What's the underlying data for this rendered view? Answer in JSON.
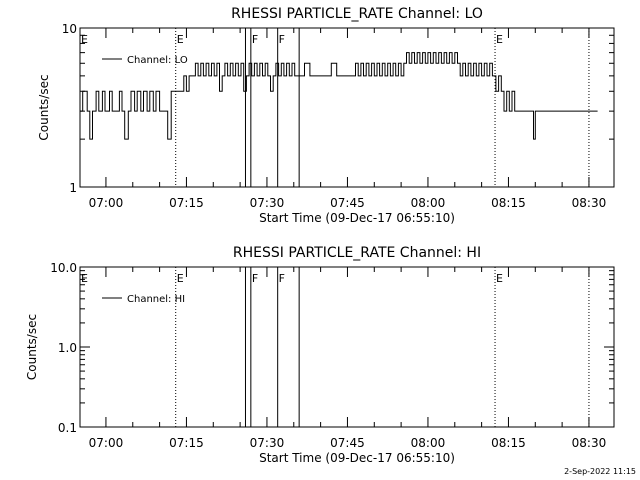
{
  "footer": {
    "date_stamp": "2-Sep-2022 11:15"
  },
  "chart_data": [
    {
      "type": "line",
      "title": "RHESSI PARTICLE_RATE Channel: LO",
      "xlabel": "Start Time (09-Dec-17 06:55:10)",
      "ylabel": "Counts/sec",
      "yscale": "log",
      "xlim": [
        "06:55:10",
        "08:34:40"
      ],
      "ylim": [
        1,
        10
      ],
      "x_ticks": [
        "07:00",
        "07:15",
        "07:30",
        "07:45",
        "08:00",
        "08:15",
        "08:30"
      ],
      "y_ticks": [
        "1",
        "10"
      ],
      "grid": false,
      "legend": "top-left",
      "legend_entries": [
        "Channel: LO"
      ],
      "event_lines": [
        {
          "time": "07:13:00",
          "label": "E",
          "style": "dotted"
        },
        {
          "time": "07:26:00",
          "label": "",
          "style": "solid"
        },
        {
          "time": "07:27:00",
          "label": "F",
          "style": "solid"
        },
        {
          "time": "07:32:00",
          "label": "F",
          "style": "solid"
        },
        {
          "time": "07:36:00",
          "label": "",
          "style": "solid"
        },
        {
          "time": "08:12:30",
          "label": "E",
          "style": "dotted"
        },
        {
          "time": "08:30:00",
          "label": "",
          "style": "dotted"
        }
      ],
      "series": [
        {
          "name": "Channel: LO",
          "points": [
            [
              "06:55:10",
              3
            ],
            [
              "06:55:40",
              4
            ],
            [
              "06:56:30",
              3
            ],
            [
              "06:57:00",
              2
            ],
            [
              "06:57:30",
              3
            ],
            [
              "06:58:10",
              4
            ],
            [
              "06:58:40",
              3
            ],
            [
              "06:59:20",
              4
            ],
            [
              "06:59:50",
              3
            ],
            [
              "07:00:40",
              4
            ],
            [
              "07:01:10",
              3
            ],
            [
              "07:02:00",
              3
            ],
            [
              "07:02:30",
              4
            ],
            [
              "07:03:00",
              3
            ],
            [
              "07:03:30",
              2
            ],
            [
              "07:04:10",
              3
            ],
            [
              "07:04:40",
              4
            ],
            [
              "07:05:20",
              3
            ],
            [
              "07:05:50",
              4
            ],
            [
              "07:06:30",
              3
            ],
            [
              "07:07:00",
              4
            ],
            [
              "07:07:40",
              3
            ],
            [
              "07:08:10",
              4
            ],
            [
              "07:08:50",
              3
            ],
            [
              "07:09:20",
              4
            ],
            [
              "07:10:00",
              3
            ],
            [
              "07:11:00",
              3
            ],
            [
              "07:11:30",
              2
            ],
            [
              "07:12:10",
              4
            ],
            [
              "07:13:00",
              4
            ],
            [
              "07:14:00",
              4
            ],
            [
              "07:14:30",
              5
            ],
            [
              "07:15:00",
              4
            ],
            [
              "07:15:30",
              5
            ],
            [
              "07:16:00",
              5
            ],
            [
              "07:16:40",
              6
            ],
            [
              "07:17:10",
              5
            ],
            [
              "07:17:40",
              6
            ],
            [
              "07:18:10",
              5
            ],
            [
              "07:18:40",
              6
            ],
            [
              "07:19:10",
              5
            ],
            [
              "07:19:40",
              6
            ],
            [
              "07:20:10",
              5
            ],
            [
              "07:20:40",
              6
            ],
            [
              "07:21:10",
              4
            ],
            [
              "07:21:40",
              5
            ],
            [
              "07:22:10",
              6
            ],
            [
              "07:22:40",
              5
            ],
            [
              "07:23:10",
              6
            ],
            [
              "07:23:40",
              5
            ],
            [
              "07:24:10",
              6
            ],
            [
              "07:24:40",
              5
            ],
            [
              "07:25:10",
              6
            ],
            [
              "07:25:40",
              4
            ],
            [
              "07:26:10",
              5
            ],
            [
              "07:26:40",
              6
            ],
            [
              "07:27:10",
              5
            ],
            [
              "07:27:40",
              6
            ],
            [
              "07:28:10",
              5
            ],
            [
              "07:28:40",
              6
            ],
            [
              "07:29:10",
              5
            ],
            [
              "07:29:40",
              6
            ],
            [
              "07:30:10",
              5
            ],
            [
              "07:30:40",
              4
            ],
            [
              "07:31:10",
              5
            ],
            [
              "07:31:40",
              6
            ],
            [
              "07:32:10",
              5
            ],
            [
              "07:32:40",
              6
            ],
            [
              "07:33:10",
              5
            ],
            [
              "07:33:40",
              6
            ],
            [
              "07:34:10",
              5
            ],
            [
              "07:34:40",
              6
            ],
            [
              "07:35:10",
              5
            ],
            [
              "07:36:00",
              5
            ],
            [
              "07:37:00",
              6
            ],
            [
              "07:38:00",
              5
            ],
            [
              "07:39:00",
              5
            ],
            [
              "07:41:00",
              5
            ],
            [
              "07:42:00",
              6
            ],
            [
              "07:43:00",
              5
            ],
            [
              "07:45:00",
              5
            ],
            [
              "07:46:00",
              5
            ],
            [
              "07:46:30",
              6
            ],
            [
              "07:47:00",
              5
            ],
            [
              "07:47:30",
              6
            ],
            [
              "07:48:00",
              5
            ],
            [
              "07:48:30",
              6
            ],
            [
              "07:49:00",
              5
            ],
            [
              "07:49:30",
              6
            ],
            [
              "07:50:00",
              5
            ],
            [
              "07:50:30",
              6
            ],
            [
              "07:51:00",
              5
            ],
            [
              "07:51:30",
              6
            ],
            [
              "07:52:00",
              5
            ],
            [
              "07:52:30",
              6
            ],
            [
              "07:53:00",
              5
            ],
            [
              "07:53:30",
              6
            ],
            [
              "07:54:00",
              5
            ],
            [
              "07:54:30",
              6
            ],
            [
              "07:55:00",
              5
            ],
            [
              "07:55:30",
              6
            ],
            [
              "07:56:00",
              7
            ],
            [
              "07:56:30",
              6
            ],
            [
              "07:57:00",
              7
            ],
            [
              "07:57:30",
              6
            ],
            [
              "07:58:00",
              7
            ],
            [
              "07:58:30",
              6
            ],
            [
              "07:59:00",
              7
            ],
            [
              "07:59:30",
              6
            ],
            [
              "08:00:00",
              7
            ],
            [
              "08:00:30",
              6
            ],
            [
              "08:01:00",
              7
            ],
            [
              "08:01:30",
              6
            ],
            [
              "08:02:00",
              7
            ],
            [
              "08:02:30",
              6
            ],
            [
              "08:03:00",
              7
            ],
            [
              "08:03:30",
              6
            ],
            [
              "08:04:00",
              7
            ],
            [
              "08:04:30",
              6
            ],
            [
              "08:05:00",
              7
            ],
            [
              "08:05:30",
              6
            ],
            [
              "08:06:00",
              5
            ],
            [
              "08:06:30",
              6
            ],
            [
              "08:07:00",
              5
            ],
            [
              "08:07:30",
              6
            ],
            [
              "08:08:00",
              5
            ],
            [
              "08:08:30",
              6
            ],
            [
              "08:09:00",
              5
            ],
            [
              "08:09:30",
              6
            ],
            [
              "08:10:00",
              5
            ],
            [
              "08:10:30",
              6
            ],
            [
              "08:11:00",
              5
            ],
            [
              "08:11:30",
              6
            ],
            [
              "08:12:00",
              5
            ],
            [
              "08:12:40",
              4
            ],
            [
              "08:13:10",
              5
            ],
            [
              "08:13:40",
              4
            ],
            [
              "08:14:10",
              3
            ],
            [
              "08:14:40",
              4
            ],
            [
              "08:15:10",
              3
            ],
            [
              "08:15:40",
              4
            ],
            [
              "08:16:10",
              3
            ],
            [
              "08:17:00",
              3
            ],
            [
              "08:18:00",
              3
            ],
            [
              "08:19:00",
              3
            ],
            [
              "08:19:40",
              2
            ],
            [
              "08:20:00",
              3
            ],
            [
              "08:22:00",
              3
            ],
            [
              "08:25:00",
              3
            ],
            [
              "08:29:00",
              3
            ]
          ]
        }
      ]
    },
    {
      "type": "line",
      "title": "RHESSI PARTICLE_RATE Channel: HI",
      "xlabel": "Start Time (09-Dec-17 06:55:10)",
      "ylabel": "Counts/sec",
      "yscale": "log",
      "xlim": [
        "06:55:10",
        "08:34:40"
      ],
      "ylim": [
        0.1,
        10
      ],
      "x_ticks": [
        "07:00",
        "07:15",
        "07:30",
        "07:45",
        "08:00",
        "08:15",
        "08:30"
      ],
      "y_ticks": [
        "0.1",
        "1.0",
        "10.0"
      ],
      "grid": false,
      "legend": "top-left",
      "legend_entries": [
        "Channel: HI"
      ],
      "event_lines": [
        {
          "time": "07:13:00",
          "label": "E",
          "style": "dotted"
        },
        {
          "time": "07:26:00",
          "label": "",
          "style": "solid"
        },
        {
          "time": "07:27:00",
          "label": "F",
          "style": "solid"
        },
        {
          "time": "07:32:00",
          "label": "F",
          "style": "solid"
        },
        {
          "time": "07:36:00",
          "label": "",
          "style": "solid"
        },
        {
          "time": "08:12:30",
          "label": "E",
          "style": "dotted"
        },
        {
          "time": "08:30:00",
          "label": "",
          "style": "dotted"
        }
      ],
      "series": [
        {
          "name": "Channel: HI",
          "points": []
        }
      ]
    }
  ]
}
